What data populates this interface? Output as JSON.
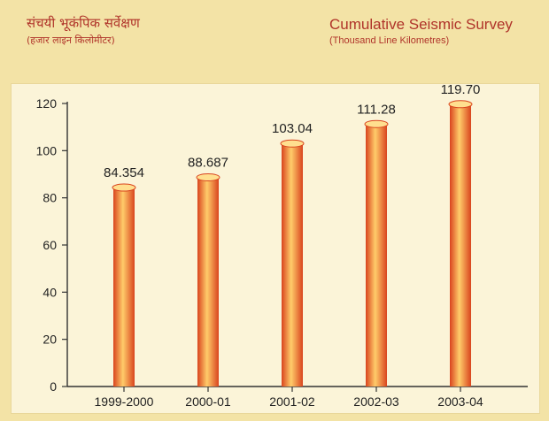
{
  "header": {
    "hindi_title": "संचयी भूकंपिक सर्वेक्षण",
    "hindi_subtitle": "(हजार लाइन किलोमीटर)",
    "english_title": "Cumulative Seismic Survey",
    "english_subtitle": "(Thousand Line Kilometres)"
  },
  "chart_data": {
    "type": "bar",
    "title": "Cumulative Seismic Survey",
    "subtitle": "(Thousand Line Kilometres)",
    "categories": [
      "1999-2000",
      "2000-01",
      "2001-02",
      "2002-03",
      "2003-04"
    ],
    "values": [
      84.354,
      88.687,
      103.04,
      111.28,
      119.7
    ],
    "value_labels": [
      "84.354",
      "88.687",
      "103.04",
      "111.28",
      "119.70"
    ],
    "ylim": [
      0,
      120
    ],
    "yticks": [
      0,
      20,
      40,
      60,
      80,
      100,
      120
    ],
    "grid": false,
    "legend": "none",
    "colors": {
      "bar_dark": "#d9441e",
      "bar_light": "#ffcc6a",
      "background": "#f3e3a6",
      "plot_background": "#fbf4d8"
    }
  }
}
